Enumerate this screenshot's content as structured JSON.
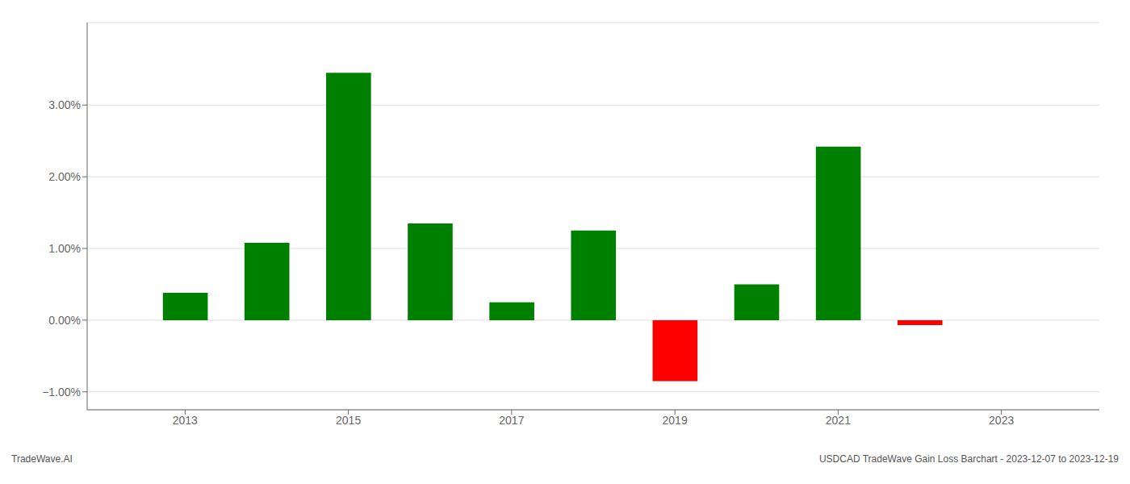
{
  "chart_data": {
    "type": "bar",
    "title": "USDCAD TradeWave Gain Loss Barchart - 2023-12-07 to 2023-12-19",
    "annotations": [
      "TradeWave.AI"
    ],
    "x": [
      2013,
      2014,
      2015,
      2016,
      2017,
      2018,
      2019,
      2020,
      2021,
      2022
    ],
    "values": [
      0.0038,
      0.0108,
      0.0345,
      0.0135,
      0.0025,
      0.0125,
      -0.0085,
      0.005,
      0.0242,
      -0.0007
    ],
    "colors": [
      "#008000",
      "#008000",
      "#008000",
      "#008000",
      "#008000",
      "#008000",
      "#ff0000",
      "#008000",
      "#008000",
      "#ff0000"
    ],
    "xlim": [
      2011.8,
      2024.2
    ],
    "xticks": [
      2013,
      2015,
      2017,
      2019,
      2021,
      2023
    ],
    "ylim": [
      -0.0125,
      0.0415
    ],
    "yticks": [
      {
        "value": -0.01,
        "label": "−1.00%"
      },
      {
        "value": 0.0,
        "label": "0.00%"
      },
      {
        "value": 0.01,
        "label": "1.00%"
      },
      {
        "value": 0.02,
        "label": "2.00%"
      },
      {
        "value": 0.03,
        "label": "3.00%"
      }
    ],
    "grid": true
  }
}
